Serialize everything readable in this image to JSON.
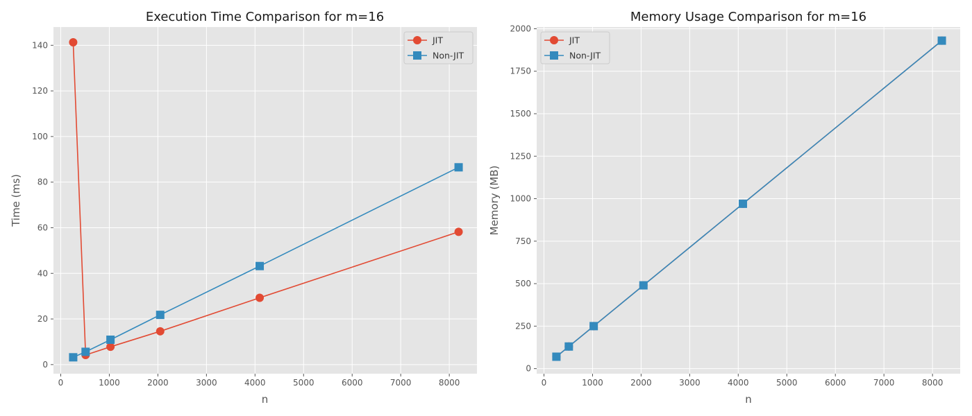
{
  "chart_data": [
    {
      "type": "line",
      "title": "Execution Time Comparison for m=16",
      "xlabel": "n",
      "ylabel": "Time (ms)",
      "xlim": [
        -150,
        8570
      ],
      "ylim": [
        -4,
        148
      ],
      "xticks": [
        0,
        1000,
        2000,
        3000,
        4000,
        5000,
        6000,
        7000,
        8000
      ],
      "yticks": [
        0,
        20,
        40,
        60,
        80,
        100,
        120,
        140
      ],
      "grid": true,
      "legend_position": "upper right",
      "x": [
        256,
        512,
        1024,
        2048,
        4096,
        8192
      ],
      "series": [
        {
          "name": "JIT",
          "marker": "circle",
          "color": "#e24a33",
          "values": [
            141.3,
            4.2,
            7.8,
            14.6,
            29.3,
            58.2
          ]
        },
        {
          "name": "Non-JIT",
          "marker": "square",
          "color": "#348abd",
          "values": [
            3.2,
            5.6,
            10.9,
            21.8,
            43.2,
            86.5
          ]
        }
      ]
    },
    {
      "type": "line",
      "title": "Memory Usage Comparison for m=16",
      "xlabel": "n",
      "ylabel": "Memory (MB)",
      "xlim": [
        -150,
        8570
      ],
      "ylim": [
        -30,
        2010
      ],
      "xticks": [
        0,
        1000,
        2000,
        3000,
        4000,
        5000,
        6000,
        7000,
        8000
      ],
      "yticks": [
        0,
        250,
        500,
        750,
        1000,
        1250,
        1500,
        1750,
        2000
      ],
      "grid": true,
      "legend_position": "upper left",
      "x": [
        256,
        512,
        1024,
        2048,
        4096,
        8192
      ],
      "series": [
        {
          "name": "JIT",
          "marker": "circle",
          "color": "#e24a33",
          "values": [
            70,
            130,
            250,
            490,
            970,
            1930
          ]
        },
        {
          "name": "Non-JIT",
          "marker": "square",
          "color": "#348abd",
          "values": [
            70,
            130,
            250,
            490,
            970,
            1930
          ]
        }
      ]
    }
  ]
}
